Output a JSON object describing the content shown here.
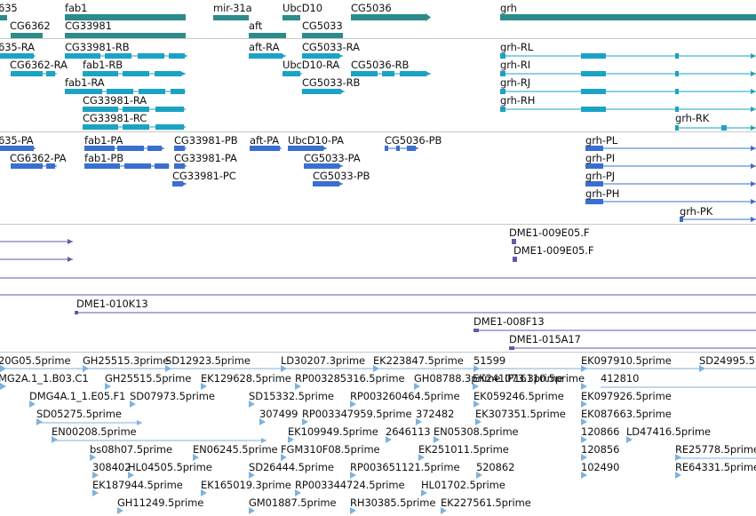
{
  "colors": {
    "gene": "#2e8b8b",
    "transcript": "#1aa3c4",
    "protein": "#3a6fd0",
    "clone": "#6b55ad",
    "est": "#7fb2db",
    "divider": "#c8c8c8"
  },
  "tracks": {
    "genes": {
      "labels": [
        "635",
        "fab1",
        "mir-31a",
        "UbcD10",
        "CG5036",
        "grh",
        "CG6362",
        "CG33981",
        "aft",
        "CG5033"
      ]
    },
    "transcripts": {
      "labels": [
        "635-RA",
        "CG33981-RB",
        "aft-RA",
        "CG5033-RA",
        "CG6362-RA",
        "fab1-RB",
        "UbcD10-RA",
        "CG5036-RB",
        "fab1-RA",
        "CG5033-RB",
        "CG33981-RA",
        "CG33981-RC",
        "grh-RL",
        "grh-RI",
        "grh-RJ",
        "grh-RH",
        "grh-RK"
      ]
    },
    "proteins": {
      "labels": [
        "635-PA",
        "fab1-PA",
        "CG33981-PB",
        "aft-PA",
        "UbcD10-PA",
        "CG5036-PB",
        "CG6362-PA",
        "fab1-PB",
        "CG33981-PA",
        "CG5033-PA",
        "CG33981-PC",
        "CG5033-PB",
        "grh-PL",
        "grh-PI",
        "grh-PJ",
        "grh-PH",
        "grh-PK"
      ]
    },
    "clones": {
      "labels": [
        "DME1-009E05.F",
        "DME1-009E05.F",
        "DME1-010K13",
        "DME1-008F13",
        "DME1-015A17"
      ]
    },
    "ests": {
      "labels": [
        "20G05.5prime",
        "GH25515.3prime",
        "SD12923.5prime",
        "LD30207.3prime",
        "EK223847.5prime",
        "51599",
        "EK097910.5prime",
        "SD24995.5",
        "MG2A.1_1.B03.C1",
        "GH25515.5prime",
        "EK129628.5prime",
        "RP003285316.5prime",
        "GH08788.3prime",
        "EK241073.3prime",
        "IP16110.5prime",
        "412810",
        "DMG4A.1_1.E05.F1",
        "SD07973.5prime",
        "SD15332.5prime",
        "RP003260464.5prime",
        "EK059246.5prime",
        "EK097926.5prime",
        "SD05275.5prime",
        "307499",
        "RP003347959.5prime",
        "372482",
        "EK307351.5prime",
        "EK087663.5prime",
        "EN00208.5prime",
        "EK109949.5prime",
        "2646113",
        "EN05308.5prime",
        "120866",
        "LD47416.5prime",
        "bs08h07.5prime",
        "EN06245.5prime",
        "FGM310F08.5prime",
        "EK251011.5prime",
        "120856",
        "RE25778.5prime",
        "308402",
        "HL04505.5prime",
        "SD26444.5prime",
        "RP003651121.5prime",
        "520862",
        "102490",
        "RE64331.5prime",
        "EK187944.5prime",
        "EK165019.3prime",
        "RP003344724.5prime",
        "HL01702.5prime",
        "GH11249.5prime",
        "GM01887.5prime",
        "RH30385.5prime",
        "EK227561.5prime"
      ]
    }
  }
}
